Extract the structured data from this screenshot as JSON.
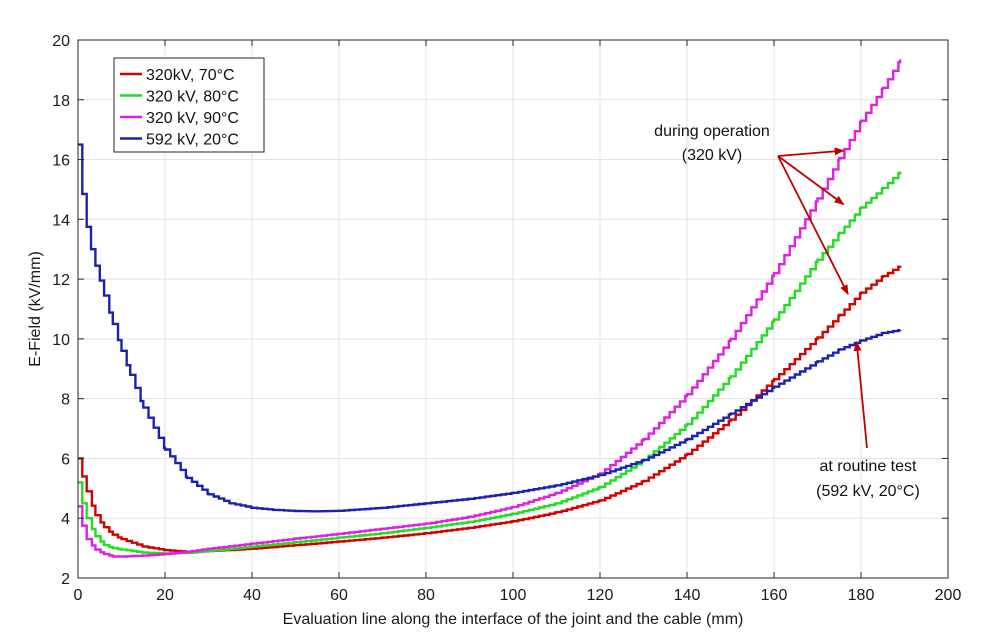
{
  "chart_data": {
    "type": "line",
    "title": "",
    "xlabel": "Evaluation line along the interface of the joint and the cable (mm)",
    "ylabel": "E-Field (kV/mm)",
    "xlim": [
      0,
      200
    ],
    "ylim": [
      2,
      20
    ],
    "xticks": [
      "0",
      "20",
      "40",
      "60",
      "80",
      "100",
      "120",
      "140",
      "160",
      "180",
      "200"
    ],
    "yticks": [
      "2",
      "4",
      "6",
      "8",
      "10",
      "12",
      "14",
      "16",
      "18",
      "20"
    ],
    "grid": true,
    "legend_position": "top-left",
    "series": [
      {
        "name": "320kV, 70°C",
        "color": "#d40000",
        "x": [
          0,
          1,
          2,
          4,
          6,
          8,
          10,
          15,
          20,
          25,
          30,
          40,
          50,
          60,
          70,
          80,
          90,
          100,
          110,
          120,
          130,
          140,
          150,
          160,
          170,
          175,
          180,
          185,
          189
        ],
        "y": [
          6.0,
          5.4,
          4.9,
          4.1,
          3.7,
          3.45,
          3.3,
          3.05,
          2.93,
          2.88,
          2.9,
          2.98,
          3.1,
          3.22,
          3.35,
          3.5,
          3.68,
          3.9,
          4.2,
          4.6,
          5.25,
          6.15,
          7.3,
          8.65,
          10.05,
          10.8,
          11.55,
          12.1,
          12.45
        ]
      },
      {
        "name": "320 kV, 80°C",
        "color": "#22dd22",
        "x": [
          0,
          1,
          2,
          4,
          6,
          8,
          10,
          15,
          20,
          25,
          30,
          40,
          50,
          60,
          70,
          80,
          90,
          100,
          110,
          120,
          130,
          140,
          150,
          160,
          170,
          175,
          180,
          185,
          189
        ],
        "y": [
          5.2,
          4.5,
          4.0,
          3.4,
          3.1,
          3.0,
          2.95,
          2.85,
          2.82,
          2.84,
          2.9,
          3.05,
          3.2,
          3.35,
          3.5,
          3.68,
          3.88,
          4.15,
          4.5,
          5.05,
          5.95,
          7.15,
          8.75,
          10.65,
          12.65,
          13.55,
          14.4,
          15.05,
          15.6
        ]
      },
      {
        "name": "320 kV, 90°C",
        "color": "#e020e0",
        "x": [
          0,
          1,
          2,
          4,
          6,
          8,
          10,
          15,
          20,
          25,
          30,
          40,
          50,
          60,
          70,
          80,
          90,
          100,
          110,
          120,
          130,
          140,
          150,
          160,
          170,
          175,
          180,
          185,
          189
        ],
        "y": [
          4.4,
          3.75,
          3.3,
          2.95,
          2.8,
          2.72,
          2.72,
          2.75,
          2.8,
          2.88,
          2.98,
          3.15,
          3.32,
          3.48,
          3.65,
          3.82,
          4.05,
          4.38,
          4.85,
          5.5,
          6.65,
          8.15,
          10.0,
          12.2,
          14.7,
          16.05,
          17.3,
          18.4,
          19.35
        ]
      },
      {
        "name": "592 kV, 20°C",
        "color": "#1a23b0",
        "x": [
          0,
          1,
          2,
          3,
          4,
          5,
          6,
          8,
          10,
          12,
          15,
          20,
          25,
          30,
          35,
          40,
          45,
          50,
          55,
          60,
          70,
          80,
          90,
          100,
          110,
          120,
          130,
          140,
          150,
          160,
          170,
          175,
          180,
          185,
          189
        ],
        "y": [
          16.5,
          14.85,
          13.75,
          13.0,
          12.45,
          11.95,
          11.45,
          10.5,
          9.6,
          8.8,
          7.7,
          6.3,
          5.35,
          4.8,
          4.5,
          4.35,
          4.28,
          4.24,
          4.23,
          4.25,
          4.35,
          4.5,
          4.65,
          4.85,
          5.1,
          5.45,
          5.95,
          6.65,
          7.5,
          8.4,
          9.25,
          9.65,
          9.95,
          10.2,
          10.3
        ]
      }
    ],
    "annotations": [
      {
        "lines": [
          "during operation",
          "(320 kV)"
        ],
        "arrow_color": "#c00000",
        "targets": [
          {
            "x": 176,
            "y": 16.3
          },
          {
            "x": 176,
            "y": 14.5
          },
          {
            "x": 177,
            "y": 11.5
          }
        ]
      },
      {
        "lines": [
          "at routine test",
          "(592 kV, 20°C)"
        ],
        "arrow_color": "#c00000",
        "targets": [
          {
            "x": 179,
            "y": 9.9
          }
        ]
      }
    ]
  }
}
